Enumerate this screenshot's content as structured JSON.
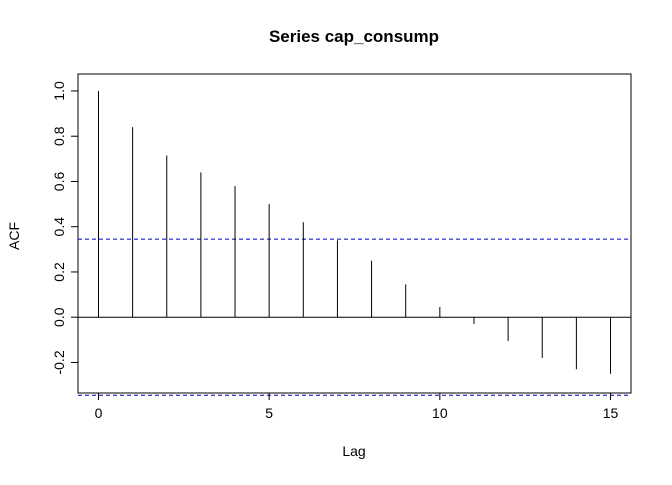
{
  "chart_data": {
    "type": "bar",
    "title": "Series  cap_consump",
    "xlabel": "Lag",
    "ylabel": "ACF",
    "x": [
      0,
      1,
      2,
      3,
      4,
      5,
      6,
      7,
      8,
      9,
      10,
      11,
      12,
      13,
      14,
      15
    ],
    "values": [
      1.0,
      0.84,
      0.715,
      0.64,
      0.58,
      0.5,
      0.42,
      0.34,
      0.25,
      0.145,
      0.045,
      -0.03,
      -0.105,
      -0.18,
      -0.23,
      -0.25
    ],
    "xlim": [
      -0.6,
      15.6
    ],
    "ylim": [
      -0.335,
      1.075
    ],
    "x_ticks": [
      0,
      5,
      10,
      15
    ],
    "x_tick_labels": [
      "0",
      "5",
      "10",
      "15"
    ],
    "y_ticks": [
      -0.2,
      0.0,
      0.2,
      0.4,
      0.6,
      0.8,
      1.0
    ],
    "y_tick_labels": [
      "-0.2",
      "0.0",
      "0.2",
      "0.4",
      "0.6",
      "0.8",
      "1.0"
    ],
    "confidence_bound": 0.345,
    "zero_line": true,
    "grid": false,
    "colors": {
      "bars": "#000000",
      "confidence": "#0000cc",
      "axes": "#000000"
    }
  }
}
